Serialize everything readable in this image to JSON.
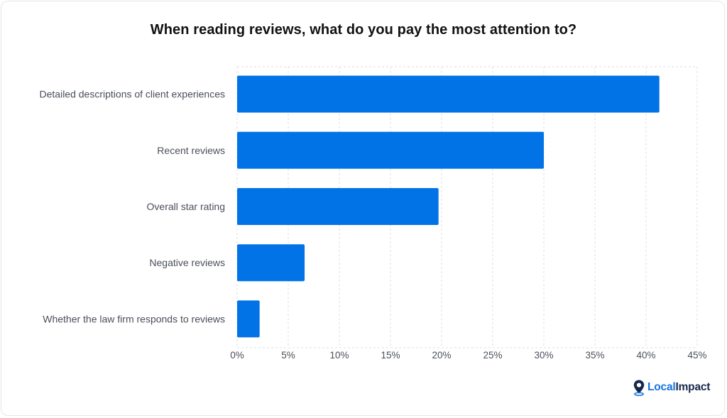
{
  "chart_data": {
    "type": "bar",
    "orientation": "horizontal",
    "title": "When reading reviews, what do you pay the most attention to?",
    "categories": [
      "Detailed descriptions of client experiences",
      "Recent reviews",
      "Overall star rating",
      "Negative reviews",
      "Whether the law firm responds to reviews"
    ],
    "values": [
      41.3,
      30.0,
      19.7,
      6.6,
      2.2
    ],
    "x_ticks": [
      "0%",
      "5%",
      "10%",
      "15%",
      "20%",
      "25%",
      "30%",
      "35%",
      "40%",
      "45%"
    ],
    "xlim": [
      0,
      45
    ],
    "grid": true,
    "bar_color": "#0273e6",
    "grid_color": "#dcdfe4"
  },
  "logo": {
    "part1": "Local",
    "part2": "Impact",
    "accent_color": "#1672e0",
    "dark_color": "#16284a"
  }
}
